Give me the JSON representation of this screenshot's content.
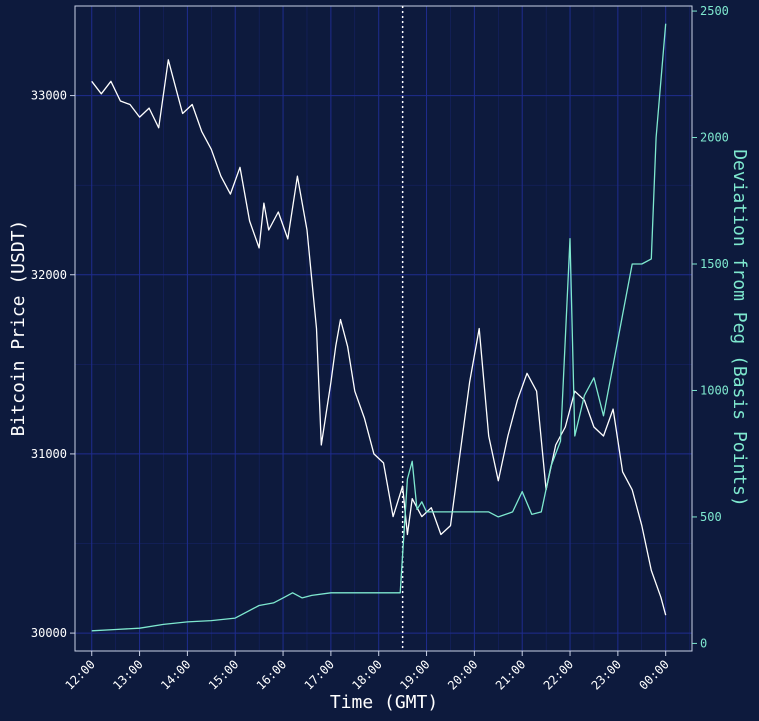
{
  "chart_data": {
    "type": "line",
    "title": "",
    "xlabel": "Time (GMT)",
    "ylabel_left": "Bitcoin Price (USDT)",
    "ylabel_right": "Deviation from Peg (Basis Points)",
    "x_ticks": [
      "12:00",
      "13:00",
      "14:00",
      "15:00",
      "16:00",
      "17:00",
      "18:00",
      "19:00",
      "20:00",
      "21:00",
      "22:00",
      "23:00",
      "00:00"
    ],
    "y_left_ticks": [
      "30000",
      "31000",
      "32000",
      "33000"
    ],
    "y_right_ticks": [
      "0",
      "500",
      "1000",
      "1500",
      "2000",
      "2500"
    ],
    "y_left_range": [
      29900,
      33500
    ],
    "y_right_range": [
      -30,
      2520
    ],
    "x_range_hours": [
      11.65,
      24.55
    ],
    "vertical_marker_hour": 18.5,
    "grid": true,
    "colors": {
      "background": "#0d1a3d",
      "grid": "#1f2c8f",
      "price": "#ffffff",
      "deviation": "#7ee8cf",
      "left_axis": "#ffffff",
      "right_axis": "#7ee8cf"
    },
    "series": [
      {
        "name": "Bitcoin Price (USDT)",
        "axis": "left",
        "x": [
          12.0,
          12.2,
          12.4,
          12.6,
          12.8,
          13.0,
          13.2,
          13.4,
          13.6,
          13.75,
          13.9,
          14.1,
          14.3,
          14.5,
          14.7,
          14.9,
          15.1,
          15.3,
          15.5,
          15.6,
          15.7,
          15.9,
          16.1,
          16.3,
          16.5,
          16.7,
          16.8,
          17.0,
          17.1,
          17.2,
          17.35,
          17.5,
          17.7,
          17.9,
          18.1,
          18.3,
          18.5,
          18.6,
          18.7,
          18.9,
          19.1,
          19.3,
          19.5,
          19.7,
          19.9,
          20.1,
          20.3,
          20.5,
          20.7,
          20.9,
          21.1,
          21.3,
          21.5,
          21.7,
          21.9,
          22.1,
          22.3,
          22.5,
          22.7,
          22.9,
          23.1,
          23.3,
          23.5,
          23.7,
          23.9,
          24.0
        ],
        "values": [
          33080,
          33010,
          33080,
          32970,
          32950,
          32880,
          32930,
          32820,
          33200,
          33050,
          32900,
          32950,
          32800,
          32700,
          32550,
          32450,
          32600,
          32300,
          32150,
          32400,
          32250,
          32350,
          32200,
          32550,
          32250,
          31700,
          31050,
          31400,
          31600,
          31750,
          31600,
          31350,
          31200,
          31000,
          30950,
          30650,
          30820,
          30550,
          30750,
          30650,
          30700,
          30550,
          30600,
          31000,
          31400,
          31700,
          31100,
          30850,
          31100,
          31300,
          31450,
          31350,
          30800,
          31050,
          31150,
          31350,
          31300,
          31150,
          31100,
          31250,
          30900,
          30800,
          30600,
          30350,
          30200,
          30100
        ]
      },
      {
        "name": "Deviation from Peg (Basis Points)",
        "axis": "right",
        "x": [
          12.0,
          12.5,
          13.0,
          13.5,
          14.0,
          14.5,
          15.0,
          15.5,
          15.8,
          16.0,
          16.2,
          16.4,
          16.6,
          17.0,
          17.5,
          18.0,
          18.45,
          18.5,
          18.6,
          18.7,
          18.8,
          18.9,
          19.0,
          19.5,
          20.0,
          20.3,
          20.5,
          20.8,
          21.0,
          21.2,
          21.4,
          21.6,
          21.8,
          22.0,
          22.1,
          22.2,
          22.3,
          22.5,
          22.7,
          22.9,
          23.1,
          23.3,
          23.5,
          23.7,
          23.8,
          24.0
        ],
        "values": [
          50,
          55,
          60,
          75,
          85,
          90,
          100,
          150,
          160,
          180,
          200,
          180,
          190,
          200,
          200,
          200,
          200,
          350,
          650,
          720,
          530,
          560,
          520,
          520,
          520,
          520,
          500,
          520,
          600,
          510,
          520,
          700,
          800,
          1600,
          820,
          900,
          980,
          1050,
          900,
          1100,
          1300,
          1500,
          1500,
          1520,
          2000,
          2450
        ]
      }
    ]
  }
}
